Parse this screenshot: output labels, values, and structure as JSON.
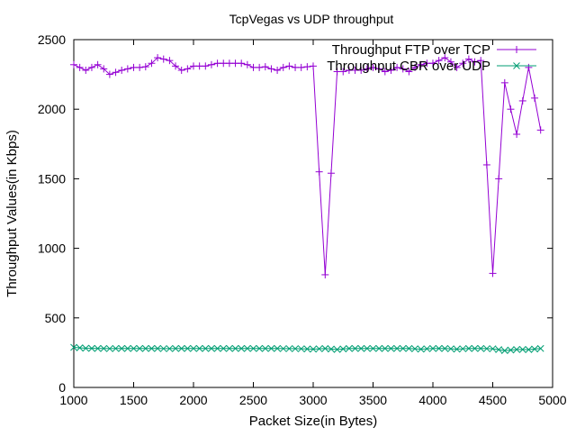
{
  "chart_data": {
    "type": "line",
    "title": "TcpVegas vs UDP throughput",
    "xlabel": "Packet Size(in Bytes)",
    "ylabel": "Throughput Values(in Kbps)",
    "xlim": [
      1000,
      5000
    ],
    "ylim": [
      0,
      2500
    ],
    "x_ticks": [
      1000,
      1500,
      2000,
      2500,
      3000,
      3500,
      4000,
      4500,
      5000
    ],
    "y_ticks": [
      0,
      500,
      1000,
      1500,
      2000,
      2500
    ],
    "grid": false,
    "legend_position": "top-right",
    "x": [
      1000,
      1050,
      1100,
      1150,
      1200,
      1250,
      1300,
      1350,
      1400,
      1450,
      1500,
      1550,
      1600,
      1650,
      1700,
      1750,
      1800,
      1850,
      1900,
      1950,
      2000,
      2050,
      2100,
      2150,
      2200,
      2250,
      2300,
      2350,
      2400,
      2450,
      2500,
      2550,
      2600,
      2650,
      2700,
      2750,
      2800,
      2850,
      2900,
      2950,
      3000,
      3050,
      3100,
      3150,
      3200,
      3250,
      3300,
      3350,
      3400,
      3450,
      3500,
      3550,
      3600,
      3650,
      3700,
      3750,
      3800,
      3850,
      3900,
      3950,
      4000,
      4050,
      4100,
      4150,
      4200,
      4250,
      4300,
      4350,
      4400,
      4450,
      4500,
      4550,
      4600,
      4650,
      4700,
      4750,
      4800,
      4850,
      4900
    ],
    "series": [
      {
        "name": "Throughput FTP over TCP",
        "color": "#9400d3",
        "marker": "plus",
        "values": [
          2320,
          2300,
          2280,
          2300,
          2320,
          2290,
          2250,
          2265,
          2280,
          2290,
          2300,
          2300,
          2305,
          2330,
          2370,
          2360,
          2350,
          2310,
          2280,
          2290,
          2310,
          2310,
          2310,
          2320,
          2330,
          2330,
          2330,
          2330,
          2330,
          2320,
          2300,
          2300,
          2305,
          2290,
          2280,
          2300,
          2310,
          2300,
          2300,
          2305,
          2310,
          1550,
          810,
          1540,
          2270,
          2270,
          2280,
          2280,
          2280,
          2290,
          2300,
          2290,
          2270,
          2280,
          2300,
          2290,
          2270,
          2300,
          2320,
          2330,
          2330,
          2350,
          2370,
          2340,
          2300,
          2330,
          2360,
          2340,
          2350,
          1600,
          820,
          1500,
          2190,
          2000,
          1820,
          2060,
          2300,
          2080,
          1850
        ]
      },
      {
        "name": "Throughput CBR over UDP",
        "color": "#009e73",
        "marker": "cross",
        "values": [
          288,
          285,
          282,
          281,
          280,
          280,
          279,
          280,
          280,
          280,
          280,
          280,
          280,
          280,
          280,
          279,
          279,
          280,
          280,
          280,
          280,
          280,
          280,
          280,
          280,
          280,
          280,
          280,
          280,
          280,
          280,
          280,
          280,
          280,
          280,
          279,
          279,
          279,
          278,
          277,
          275,
          278,
          280,
          276,
          273,
          277,
          280,
          280,
          280,
          280,
          280,
          280,
          280,
          280,
          280,
          280,
          280,
          278,
          275,
          278,
          280,
          280,
          280,
          278,
          275,
          278,
          280,
          280,
          280,
          279,
          278,
          272,
          265,
          269,
          273,
          273,
          272,
          276,
          280
        ]
      }
    ]
  }
}
